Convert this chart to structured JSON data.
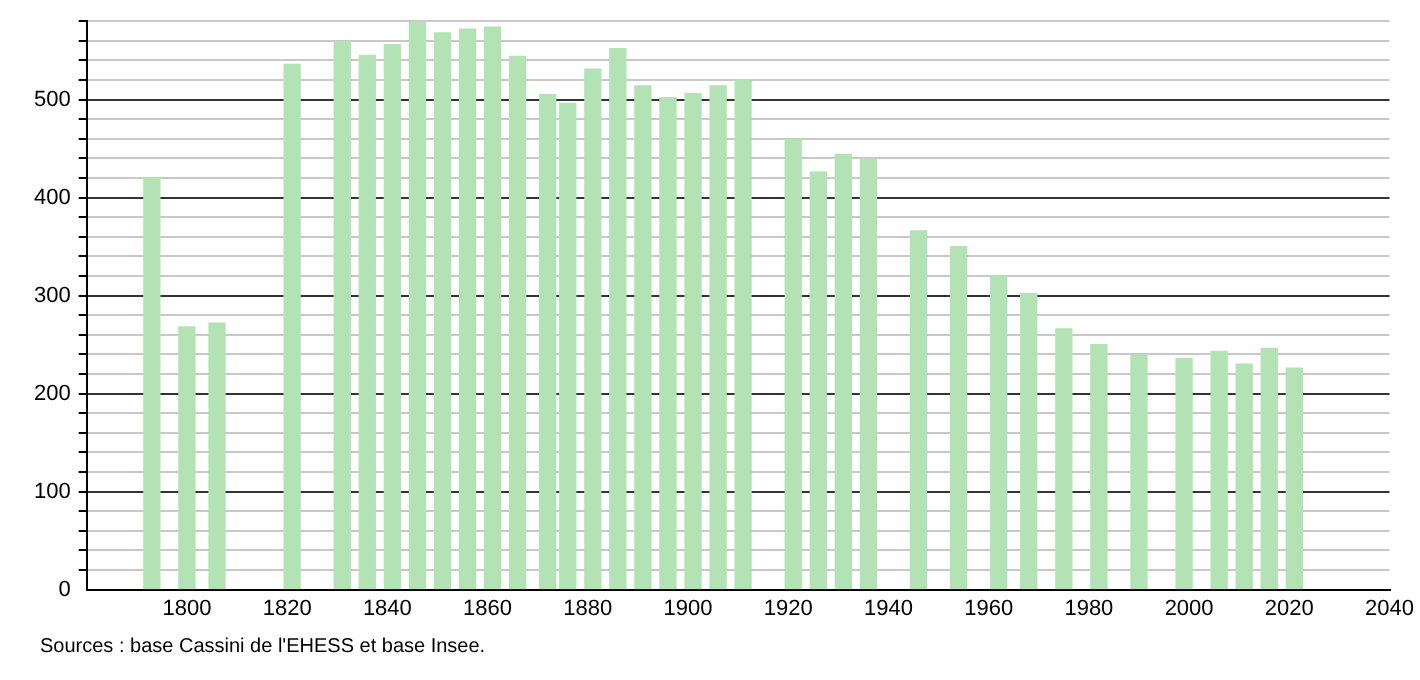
{
  "chart_data": {
    "type": "bar",
    "x": [
      1793,
      1800,
      1806,
      1821,
      1831,
      1836,
      1841,
      1846,
      1851,
      1856,
      1861,
      1866,
      1872,
      1876,
      1881,
      1886,
      1891,
      1896,
      1901,
      1906,
      1911,
      1921,
      1926,
      1931,
      1936,
      1946,
      1954,
      1962,
      1968,
      1975,
      1982,
      1990,
      1999,
      2006,
      2011,
      2016,
      2021
    ],
    "values": [
      420,
      268,
      272,
      536,
      559,
      545,
      556,
      580,
      568,
      572,
      574,
      544,
      505,
      496,
      531,
      552,
      514,
      502,
      506,
      514,
      520,
      459,
      426,
      444,
      439,
      366,
      350,
      320,
      302,
      266,
      250,
      239,
      236,
      243,
      230,
      246,
      226
    ],
    "color": "#b3e3b5",
    "xlim": [
      1780,
      2040
    ],
    "xticks": [
      1800,
      1820,
      1840,
      1860,
      1880,
      1900,
      1920,
      1940,
      1960,
      1980,
      2000,
      2020,
      2040
    ],
    "ylim": [
      0,
      580
    ],
    "yticks": [
      0,
      {
        "value": 20,
        "label": null
      },
      {
        "value": 40,
        "label": null
      },
      {
        "value": 60,
        "label": null
      },
      {
        "value": 80,
        "label": null
      },
      100,
      {
        "value": 120,
        "label": null
      },
      {
        "value": 140,
        "label": null
      },
      {
        "value": 160,
        "label": null
      },
      {
        "value": 180,
        "label": null
      },
      200,
      {
        "value": 220,
        "label": null
      },
      {
        "value": 240,
        "label": null
      },
      {
        "value": 260,
        "label": null
      },
      {
        "value": 280,
        "label": null
      },
      300,
      {
        "value": 320,
        "label": null
      },
      {
        "value": 340,
        "label": null
      },
      {
        "value": 360,
        "label": null
      },
      {
        "value": 380,
        "label": null
      },
      400,
      {
        "value": 420,
        "label": null
      },
      {
        "value": 440,
        "label": null
      },
      {
        "value": 460,
        "label": null
      },
      {
        "value": 480,
        "label": null
      },
      500,
      {
        "value": 520,
        "label": null
      },
      {
        "value": 540,
        "label": null
      },
      {
        "value": 560,
        "label": null
      },
      {
        "value": 580,
        "label": null
      }
    ],
    "grid": "y",
    "legend": false,
    "annotations": [
      "Sources : base Cassini de l'EHESS et base Insee."
    ]
  }
}
